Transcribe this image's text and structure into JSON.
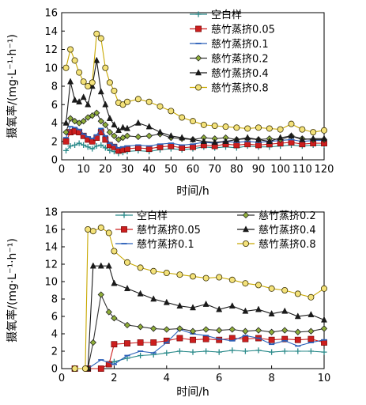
{
  "chart_data": [
    {
      "type": "line",
      "xlabel": "时间/h",
      "ylabel": "摄氧率/(mg·L⁻¹·h⁻¹)",
      "xlim": [
        0,
        120
      ],
      "ylim": [
        0,
        16
      ],
      "xticks": [
        0,
        10,
        20,
        30,
        40,
        50,
        60,
        70,
        80,
        90,
        100,
        110,
        120
      ],
      "yticks": [
        0,
        2,
        4,
        6,
        8,
        10,
        12,
        14,
        16
      ],
      "legend_position": "top-right",
      "series": [
        {
          "name": "空白样",
          "color": "#2a8a8a",
          "marker": "plus",
          "x": [
            2,
            4,
            6,
            8,
            10,
            12,
            14,
            16,
            18,
            20,
            22,
            24,
            26,
            28,
            30,
            35,
            40,
            45,
            50,
            55,
            60,
            65,
            70,
            75,
            80,
            85,
            90,
            95,
            100,
            105,
            110,
            115,
            120
          ],
          "y": [
            1.0,
            1.5,
            1.6,
            1.8,
            1.6,
            1.4,
            1.2,
            1.5,
            1.6,
            1.3,
            1.0,
            0.9,
            0.7,
            0.8,
            0.9,
            1.0,
            0.9,
            1.1,
            1.2,
            1.1,
            1.2,
            1.4,
            1.3,
            1.4,
            1.3,
            1.5,
            1.4,
            1.4,
            1.5,
            1.6,
            1.5,
            1.6,
            1.6
          ]
        },
        {
          "name": "慈竹蒸挤0.05",
          "color": "#cc1e1e",
          "marker": "square",
          "x": [
            2,
            4,
            6,
            8,
            10,
            12,
            14,
            16,
            18,
            20,
            22,
            24,
            26,
            28,
            30,
            35,
            40,
            45,
            50,
            55,
            60,
            65,
            70,
            75,
            80,
            85,
            90,
            95,
            100,
            105,
            110,
            115,
            120
          ],
          "y": [
            2.0,
            3.0,
            3.1,
            3.0,
            2.6,
            2.2,
            2.0,
            2.4,
            3.0,
            2.2,
            1.6,
            1.4,
            1.0,
            1.1,
            1.2,
            1.3,
            1.2,
            1.4,
            1.5,
            1.3,
            1.4,
            1.6,
            1.5,
            1.7,
            1.6,
            1.7,
            1.6,
            1.7,
            1.8,
            1.9,
            1.7,
            1.8,
            1.8
          ]
        },
        {
          "name": "慈竹蒸挤0.1",
          "color": "#2a5fb8",
          "marker": "dash",
          "x": [
            2,
            4,
            6,
            8,
            10,
            12,
            14,
            16,
            18,
            20,
            22,
            24,
            26,
            28,
            30,
            35,
            40,
            45,
            50,
            55,
            60,
            65,
            70,
            75,
            80,
            85,
            90,
            95,
            100,
            105,
            110,
            115,
            120
          ],
          "y": [
            2.4,
            3.6,
            3.5,
            3.3,
            2.8,
            2.5,
            2.3,
            2.7,
            3.4,
            2.6,
            1.8,
            1.6,
            1.3,
            1.4,
            1.5,
            1.6,
            1.5,
            1.7,
            1.8,
            1.6,
            1.7,
            1.9,
            1.8,
            2.0,
            1.9,
            2.0,
            1.9,
            2.0,
            2.1,
            2.2,
            2.0,
            2.1,
            2.1
          ]
        },
        {
          "name": "慈竹蒸挤0.2",
          "color": "#333333",
          "marker": "diamond",
          "x": [
            2,
            4,
            6,
            8,
            10,
            12,
            14,
            16,
            18,
            20,
            22,
            24,
            26,
            28,
            30,
            35,
            40,
            45,
            50,
            55,
            60,
            65,
            70,
            75,
            80,
            85,
            90,
            95,
            100,
            105,
            110,
            115,
            120
          ],
          "y": [
            3.0,
            4.5,
            4.2,
            4.0,
            4.2,
            4.6,
            4.8,
            5.1,
            4.2,
            3.8,
            3.0,
            2.6,
            2.2,
            2.4,
            2.6,
            2.5,
            2.6,
            2.8,
            2.4,
            2.3,
            2.2,
            2.4,
            2.3,
            2.4,
            2.2,
            2.3,
            2.2,
            2.3,
            2.2,
            2.6,
            2.3,
            2.2,
            2.2
          ]
        },
        {
          "name": "慈竹蒸挤0.4",
          "color": "#1a1a1a",
          "marker": "triangle",
          "x": [
            2,
            4,
            6,
            8,
            10,
            12,
            14,
            16,
            18,
            20,
            22,
            24,
            26,
            28,
            30,
            35,
            40,
            45,
            50,
            55,
            60,
            65,
            70,
            75,
            80,
            85,
            90,
            95,
            100,
            105,
            110,
            115,
            120
          ],
          "y": [
            4.0,
            8.5,
            6.5,
            6.3,
            6.8,
            6.0,
            8.0,
            10.8,
            7.4,
            6.0,
            4.5,
            3.8,
            3.2,
            3.5,
            3.4,
            4.0,
            3.6,
            3.0,
            2.6,
            2.4,
            2.2,
            2.0,
            1.9,
            2.0,
            2.2,
            2.4,
            2.2,
            2.0,
            2.4,
            2.6,
            2.2,
            2.3,
            2.3
          ]
        },
        {
          "name": "慈竹蒸挤0.8",
          "color": "#c8a800",
          "marker": "circle",
          "x": [
            2,
            4,
            6,
            8,
            10,
            12,
            14,
            16,
            18,
            20,
            22,
            24,
            26,
            28,
            30,
            35,
            40,
            45,
            50,
            55,
            60,
            65,
            70,
            75,
            80,
            85,
            90,
            95,
            100,
            105,
            110,
            115,
            120
          ],
          "y": [
            10.0,
            12.0,
            10.8,
            9.5,
            8.5,
            8.0,
            8.4,
            13.7,
            13.2,
            10.0,
            8.4,
            7.5,
            6.2,
            6.0,
            6.3,
            6.6,
            6.3,
            5.8,
            5.3,
            4.6,
            4.2,
            3.8,
            3.7,
            3.6,
            3.5,
            3.4,
            3.5,
            3.4,
            3.3,
            3.9,
            3.3,
            3.0,
            3.2
          ]
        }
      ]
    },
    {
      "type": "line",
      "xlabel": "时间/h",
      "ylabel": "摄氧率/(mg·L⁻¹·h⁻¹)",
      "xlim": [
        0,
        10
      ],
      "ylim": [
        0,
        18
      ],
      "xticks": [
        0,
        2,
        4,
        6,
        8,
        10
      ],
      "yticks": [
        0,
        2,
        4,
        6,
        8,
        10,
        12,
        14,
        16,
        18
      ],
      "legend_position": "top",
      "series": [
        {
          "name": "空白样",
          "color": "#2a8a8a",
          "marker": "plus",
          "x": [
            0.5,
            1.0,
            1.5,
            1.8,
            2.0,
            2.5,
            3.0,
            3.5,
            4.0,
            4.5,
            5.0,
            5.5,
            6.0,
            6.5,
            7.0,
            7.5,
            8.0,
            8.5,
            9.0,
            9.5,
            10.0
          ],
          "y": [
            0,
            0,
            0,
            0.5,
            0.8,
            1.2,
            1.5,
            1.6,
            1.8,
            2.0,
            1.9,
            2.0,
            1.9,
            2.1,
            2.0,
            2.1,
            1.9,
            2.0,
            2.0,
            2.0,
            1.9
          ]
        },
        {
          "name": "慈竹蒸挤0.05",
          "color": "#cc1e1e",
          "marker": "square",
          "x": [
            0.5,
            1.0,
            1.5,
            1.8,
            2.0,
            2.5,
            3.0,
            3.5,
            4.0,
            4.5,
            5.0,
            5.5,
            6.0,
            6.5,
            7.0,
            7.5,
            8.0,
            8.5,
            9.0,
            9.5,
            10.0
          ],
          "y": [
            0,
            0,
            0,
            0.5,
            2.8,
            2.9,
            3.0,
            3.0,
            3.2,
            3.5,
            3.3,
            3.4,
            3.3,
            3.5,
            3.4,
            3.5,
            3.3,
            3.4,
            3.3,
            3.4,
            3.0
          ]
        },
        {
          "name": "慈竹蒸挤0.1",
          "color": "#2a5fb8",
          "marker": "dash",
          "x": [
            0.5,
            1.0,
            1.5,
            2.0,
            2.5,
            3.0,
            3.5,
            4.0,
            4.5,
            5.0,
            5.5,
            6.0,
            6.5,
            7.0,
            7.5,
            8.0,
            8.5,
            9.0,
            9.5,
            10.0
          ],
          "y": [
            0,
            0,
            1.0,
            0.5,
            1.5,
            2.0,
            1.8,
            3.0,
            4.5,
            4.0,
            3.8,
            3.4,
            3.2,
            3.8,
            3.5,
            2.8,
            3.2,
            2.6,
            3.0,
            3.3
          ]
        },
        {
          "name": "慈竹蒸挤0.2",
          "color": "#333333",
          "marker": "diamond",
          "x": [
            0.5,
            1.0,
            1.2,
            1.5,
            1.8,
            2.0,
            2.5,
            3.0,
            3.5,
            4.0,
            4.5,
            5.0,
            5.5,
            6.0,
            6.5,
            7.0,
            7.5,
            8.0,
            8.5,
            9.0,
            9.5,
            10.0
          ],
          "y": [
            0,
            0,
            3.0,
            8.5,
            6.5,
            5.8,
            5.0,
            4.8,
            4.6,
            4.5,
            4.6,
            4.3,
            4.5,
            4.4,
            4.5,
            4.3,
            4.4,
            4.2,
            4.4,
            4.2,
            4.3,
            4.6
          ]
        },
        {
          "name": "慈竹蒸挤0.4",
          "color": "#1a1a1a",
          "marker": "triangle",
          "x": [
            0.5,
            1.0,
            1.2,
            1.5,
            1.8,
            2.0,
            2.5,
            3.0,
            3.5,
            4.0,
            4.5,
            5.0,
            5.5,
            6.0,
            6.5,
            7.0,
            7.5,
            8.0,
            8.5,
            9.0,
            9.5,
            10.0
          ],
          "y": [
            0,
            0,
            11.8,
            11.8,
            11.8,
            9.8,
            9.2,
            8.6,
            8.0,
            7.6,
            7.2,
            7.0,
            7.4,
            6.8,
            7.2,
            6.6,
            6.8,
            6.3,
            6.6,
            6.0,
            6.2,
            5.6
          ]
        },
        {
          "name": "慈竹蒸挤0.8",
          "color": "#c8a800",
          "marker": "circle",
          "x": [
            0.5,
            0.9,
            1.0,
            1.2,
            1.5,
            1.8,
            2.0,
            2.5,
            3.0,
            3.5,
            4.0,
            4.5,
            5.0,
            5.5,
            6.0,
            6.5,
            7.0,
            7.5,
            8.0,
            8.5,
            9.0,
            9.5,
            10.0
          ],
          "y": [
            0,
            0,
            16.0,
            15.8,
            16.2,
            15.6,
            13.5,
            12.2,
            11.6,
            11.2,
            11.0,
            10.8,
            10.6,
            10.4,
            10.5,
            10.2,
            9.8,
            9.6,
            9.2,
            9.0,
            8.6,
            8.2,
            9.2
          ]
        }
      ]
    }
  ]
}
